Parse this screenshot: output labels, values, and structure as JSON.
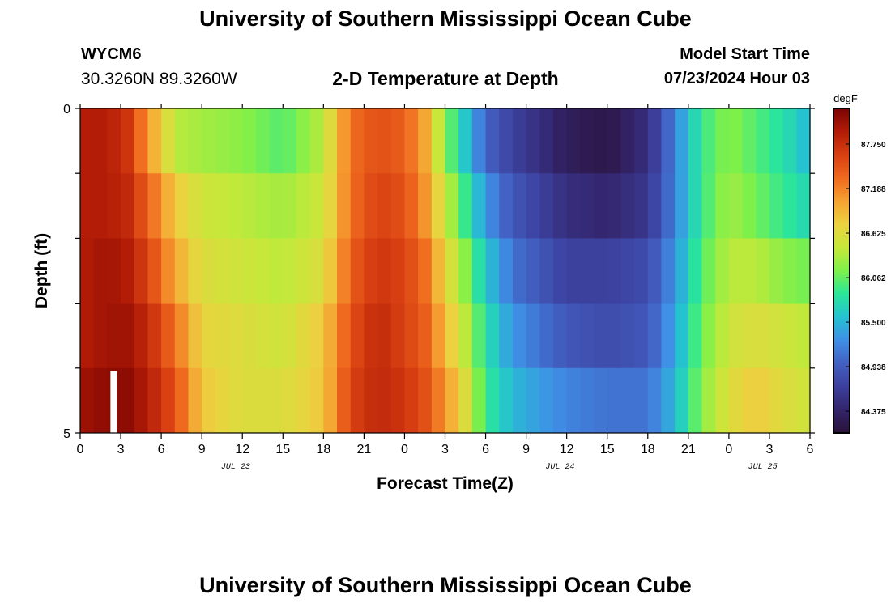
{
  "header": {
    "title": "University of Southern Mississippi Ocean Cube",
    "station": "WYCM6",
    "coords": "30.3260N  89.3260W",
    "subtitle": "2-D Temperature at Depth",
    "model_start_label": "Model Start Time",
    "model_start_value": "07/23/2024 Hour 03"
  },
  "footer": {
    "title": "University of Southern Mississippi Ocean Cube"
  },
  "chart_data": {
    "type": "heatmap",
    "xlabel": "Forecast Time(Z)",
    "ylabel": "Depth (ft)",
    "x_tick_labels": [
      "0",
      "3",
      "6",
      "9",
      "12",
      "15",
      "18",
      "21",
      "0",
      "3",
      "6",
      "9",
      "12",
      "15",
      "18",
      "21",
      "0",
      "3",
      "6"
    ],
    "x_hours": [
      0,
      3,
      6,
      9,
      12,
      15,
      18,
      21,
      24,
      27,
      30,
      33,
      36,
      39,
      42,
      45,
      48,
      51,
      54
    ],
    "date_labels": [
      {
        "label": "JUL 23",
        "hour": 11.5
      },
      {
        "label": "JUL 24",
        "hour": 35.5
      },
      {
        "label": "JUL 25",
        "hour": 50.5
      }
    ],
    "xlim": [
      0,
      54
    ],
    "ylim": [
      5,
      0
    ],
    "y_tick_labels": [
      "0",
      "5"
    ],
    "depth_bands": [
      0,
      1,
      2,
      3,
      4,
      5
    ],
    "colorbar": {
      "unit": "degF",
      "min": 84.1,
      "max": 88.2,
      "ticks": [
        "87.750",
        "87.188",
        "86.625",
        "86.062",
        "85.500",
        "84.938",
        "84.375"
      ],
      "tick_values": [
        87.75,
        87.188,
        86.625,
        86.062,
        85.5,
        84.938,
        84.375
      ],
      "colors": [
        "#2a1138",
        "#33256b",
        "#3c3f9c",
        "#4260c2",
        "#3f8fe6",
        "#25c2d1",
        "#2ae69a",
        "#7ef04a",
        "#c6e83a",
        "#ecd240",
        "#f6a232",
        "#ef6a1f",
        "#d83f11",
        "#b21c07",
        "#7a0403"
      ]
    },
    "value_keypoints": [
      {
        "hour": 0,
        "values": [
          87.9,
          87.9,
          87.9,
          87.9,
          88.0
        ]
      },
      {
        "hour": 2,
        "values": [
          87.9,
          87.9,
          88.0,
          88.0,
          88.1
        ]
      },
      {
        "hour": 3.5,
        "values": [
          87.7,
          87.8,
          87.9,
          88.0,
          88.1
        ]
      },
      {
        "hour": 5,
        "values": [
          87.1,
          87.4,
          87.6,
          87.8,
          87.9
        ]
      },
      {
        "hour": 7,
        "values": [
          86.4,
          86.8,
          87.0,
          87.3,
          87.5
        ]
      },
      {
        "hour": 9,
        "values": [
          86.3,
          86.5,
          86.6,
          86.7,
          86.8
        ]
      },
      {
        "hour": 12,
        "values": [
          86.2,
          86.4,
          86.5,
          86.6,
          86.6
        ]
      },
      {
        "hour": 15,
        "values": [
          86.0,
          86.3,
          86.4,
          86.5,
          86.6
        ]
      },
      {
        "hour": 18,
        "values": [
          86.4,
          86.5,
          86.6,
          86.8,
          86.8
        ]
      },
      {
        "hour": 20,
        "values": [
          87.3,
          87.3,
          87.4,
          87.5,
          87.6
        ]
      },
      {
        "hour": 22,
        "values": [
          87.5,
          87.6,
          87.7,
          87.8,
          87.8
        ]
      },
      {
        "hour": 24,
        "values": [
          87.4,
          87.5,
          87.6,
          87.6,
          87.7
        ]
      },
      {
        "hour": 25.5,
        "values": [
          87.0,
          87.1,
          87.3,
          87.4,
          87.5
        ]
      },
      {
        "hour": 27,
        "values": [
          86.2,
          86.5,
          86.7,
          86.9,
          87.1
        ]
      },
      {
        "hour": 28.5,
        "values": [
          85.6,
          85.9,
          86.2,
          86.4,
          86.6
        ]
      },
      {
        "hour": 30,
        "values": [
          85.0,
          85.3,
          85.6,
          85.8,
          85.9
        ]
      },
      {
        "hour": 32,
        "values": [
          84.7,
          84.9,
          85.1,
          85.3,
          85.5
        ]
      },
      {
        "hour": 36,
        "values": [
          84.3,
          84.5,
          84.7,
          84.9,
          85.2
        ]
      },
      {
        "hour": 39,
        "values": [
          84.2,
          84.4,
          84.7,
          84.8,
          85.1
        ]
      },
      {
        "hour": 42,
        "values": [
          84.5,
          84.6,
          84.8,
          84.9,
          85.1
        ]
      },
      {
        "hour": 44,
        "values": [
          85.2,
          85.2,
          85.3,
          85.4,
          85.5
        ]
      },
      {
        "hour": 46,
        "values": [
          85.9,
          85.9,
          86.0,
          86.1,
          86.2
        ]
      },
      {
        "hour": 48,
        "values": [
          86.2,
          86.3,
          86.4,
          86.5,
          86.6
        ]
      },
      {
        "hour": 50,
        "values": [
          86.0,
          86.1,
          86.4,
          86.6,
          86.8
        ]
      },
      {
        "hour": 52,
        "values": [
          85.8,
          85.9,
          86.2,
          86.5,
          86.6
        ]
      },
      {
        "hour": 54,
        "values": [
          85.5,
          85.7,
          86.1,
          86.4,
          86.5
        ]
      }
    ],
    "current_time_marker_hour": 2
  }
}
